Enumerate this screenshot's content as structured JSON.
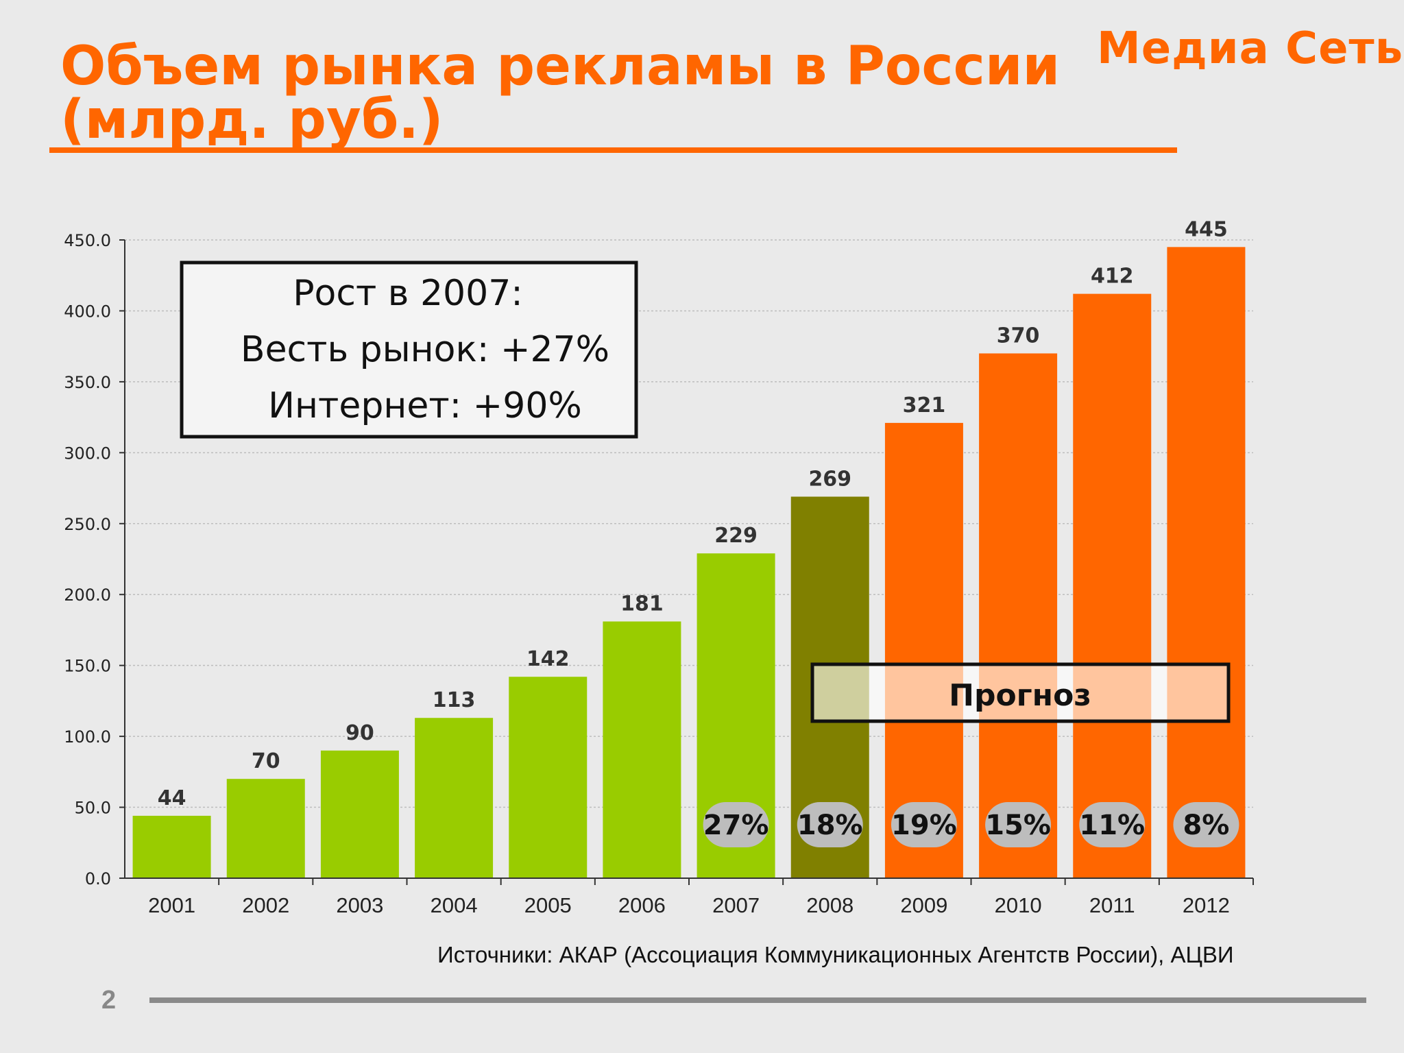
{
  "header": {
    "title_line1": "Объем рынка рекламы в России",
    "title_line2": "(млрд. руб.)",
    "logo": "Медиа Сеть"
  },
  "colors": {
    "accent": "#ff6600",
    "actual": "#99cc00",
    "estimate_2008": "#808000",
    "forecast": "#ff6600"
  },
  "chart_data": {
    "type": "bar",
    "categories": [
      "2001",
      "2002",
      "2003",
      "2004",
      "2005",
      "2006",
      "2007",
      "2008",
      "2009",
      "2010",
      "2011",
      "2012"
    ],
    "values": [
      44,
      70,
      90,
      113,
      142,
      181,
      229,
      269,
      321,
      370,
      412,
      445
    ],
    "value_labels": [
      "44",
      "70",
      "90",
      "113",
      "142",
      "181",
      "229",
      "269",
      "321",
      "370",
      "412",
      "445"
    ],
    "growth_labels": [
      null,
      null,
      null,
      null,
      null,
      null,
      "27%",
      "18%",
      "19%",
      "15%",
      "11%",
      "8%"
    ],
    "bar_color_groups": [
      "actual",
      "actual",
      "actual",
      "actual",
      "actual",
      "actual",
      "actual",
      "estimate_2008",
      "forecast",
      "forecast",
      "forecast",
      "forecast"
    ],
    "ylim": [
      0,
      450
    ],
    "yticks": [
      "0.0",
      "50.0",
      "100.0",
      "150.0",
      "200.0",
      "250.0",
      "300.0",
      "350.0",
      "400.0",
      "450.0"
    ],
    "grid": true,
    "annotations": {
      "growth_box": [
        "Рост в 2007:",
        "Весть рынок: +27%",
        "Интернет: +90%"
      ],
      "forecast_label": "Прогноз"
    }
  },
  "footer": {
    "source": "Источники: АКАР (Ассоциация Коммуникационных Агентств России), АЦВИ",
    "page_number": "2"
  }
}
